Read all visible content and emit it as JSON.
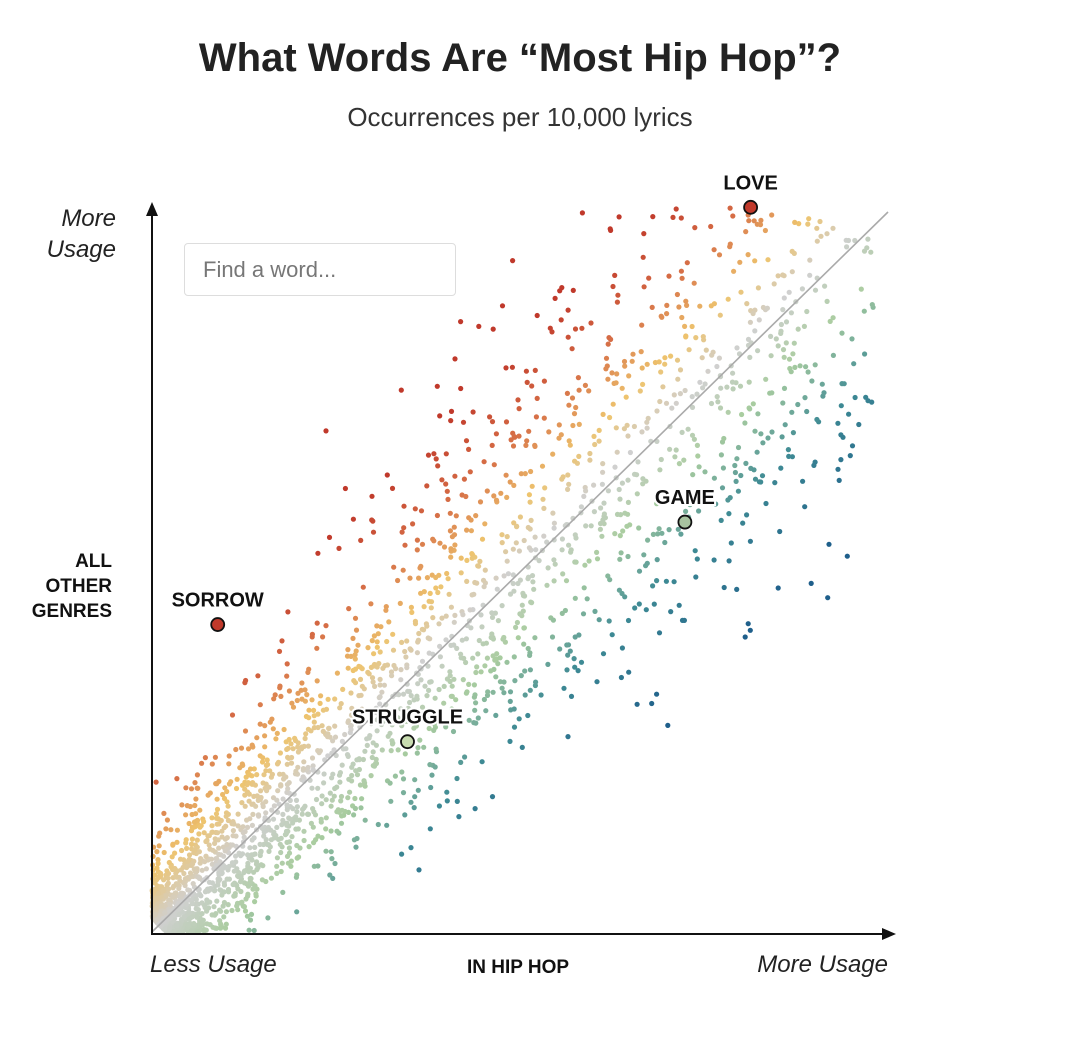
{
  "title": "What Words Are “Most Hip Hop”?",
  "subtitle": "Occurrences per 10,000 lyrics",
  "search": {
    "placeholder": "Find a word..."
  },
  "axes": {
    "y_top": [
      "More",
      "Usage"
    ],
    "y_mid": [
      "ALL",
      "OTHER",
      "GENRES"
    ],
    "x_left": "Less Usage",
    "x_mid": "IN HIP HOP",
    "x_right": "More Usage"
  },
  "colors": {
    "other_genres_heavy": "#c0392b",
    "balanced": "#cfcfcf",
    "hip_hop_heavy": "#1f5f8b",
    "diagonal": "#aaaaaa",
    "axis": "#111111"
  },
  "chart_data": {
    "type": "scatter",
    "title": "What Words Are “Most Hip Hop”?",
    "subtitle": "Occurrences per 10,000 lyrics",
    "xlabel": "IN HIP HOP",
    "ylabel": "ALL OTHER GENRES",
    "xlim": [
      0,
      100
    ],
    "ylim": [
      0,
      100
    ],
    "scale": "log (relative usage)",
    "reference_line": "y = x",
    "highlighted": [
      {
        "label": "LOVE",
        "x": 82,
        "y": 99,
        "color": "#c0392b"
      },
      {
        "label": "GAME",
        "x": 73,
        "y": 56,
        "color": "#a8c4a0"
      },
      {
        "label": "SORROW",
        "x": 9,
        "y": 42,
        "color": "#c0392b"
      },
      {
        "label": "STRUGGLE",
        "x": 35,
        "y": 26,
        "color": "#c8dcb0"
      }
    ]
  }
}
